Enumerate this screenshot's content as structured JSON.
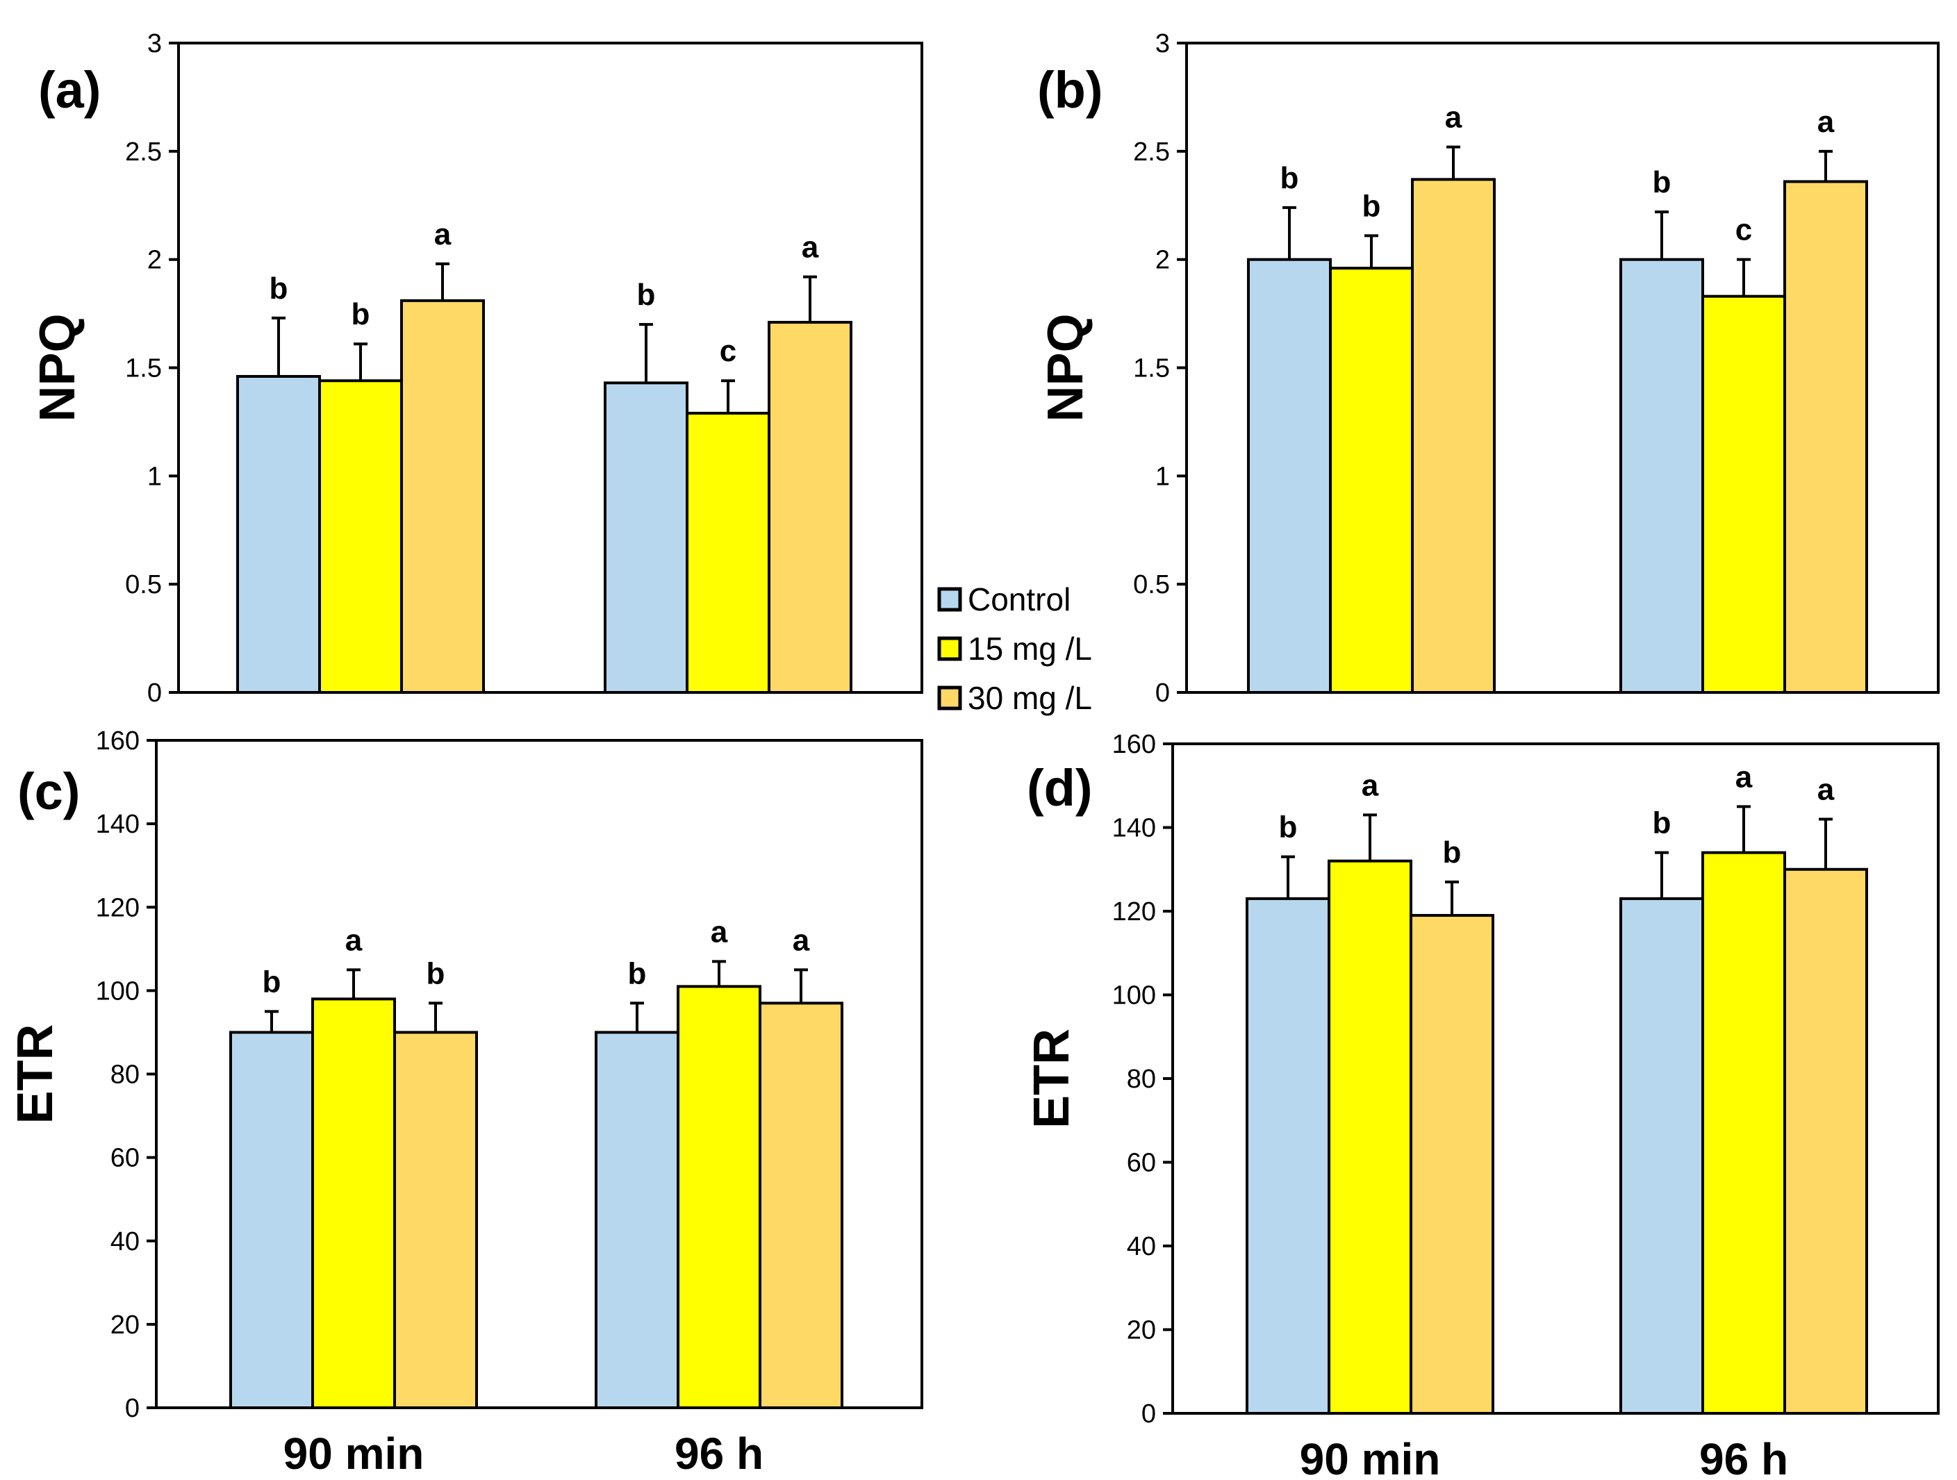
{
  "legend": [
    {
      "name": "Control",
      "color": "#b7d7ef"
    },
    {
      "name": "15 mg /L",
      "color": "#ffff00"
    },
    {
      "name": "30 mg /L",
      "color": "#ffd966"
    }
  ],
  "chart_data": [
    {
      "type": "bar",
      "panel": "(a)",
      "ylabel": "NPQ",
      "xlabel": "",
      "ylim": [
        0,
        3
      ],
      "yticks": [
        "0",
        "0.5",
        "1",
        "1.5",
        "2",
        "2.5",
        "3"
      ],
      "categories": [
        "90 min",
        "96 h"
      ],
      "show_xticklabels": false,
      "series": [
        {
          "name": "Control",
          "values": [
            1.46,
            1.43
          ],
          "errors": [
            0.27,
            0.27
          ],
          "sig": [
            "b",
            "b"
          ]
        },
        {
          "name": "15 mg /L",
          "values": [
            1.44,
            1.29
          ],
          "errors": [
            0.17,
            0.15
          ],
          "sig": [
            "b",
            "c"
          ]
        },
        {
          "name": "30 mg /L",
          "values": [
            1.81,
            1.71
          ],
          "errors": [
            0.17,
            0.21
          ],
          "sig": [
            "a",
            "a"
          ]
        }
      ]
    },
    {
      "type": "bar",
      "panel": "(b)",
      "ylabel": "NPQ",
      "xlabel": "",
      "ylim": [
        0,
        3
      ],
      "yticks": [
        "0",
        "0.5",
        "1",
        "1.5",
        "2",
        "2.5",
        "3"
      ],
      "categories": [
        "90 min",
        "96 h"
      ],
      "show_xticklabels": false,
      "series": [
        {
          "name": "Control",
          "values": [
            2.0,
            2.0
          ],
          "errors": [
            0.24,
            0.22
          ],
          "sig": [
            "b",
            "b"
          ]
        },
        {
          "name": "15 mg /L",
          "values": [
            1.96,
            1.83
          ],
          "errors": [
            0.15,
            0.17
          ],
          "sig": [
            "b",
            "c"
          ]
        },
        {
          "name": "30 mg /L",
          "values": [
            2.37,
            2.36
          ],
          "errors": [
            0.15,
            0.14
          ],
          "sig": [
            "a",
            "a"
          ]
        }
      ]
    },
    {
      "type": "bar",
      "panel": "(c)",
      "ylabel": "ETR",
      "xlabel": "",
      "ylim": [
        0,
        160
      ],
      "yticks": [
        "0",
        "20",
        "40",
        "60",
        "80",
        "100",
        "120",
        "140",
        "160"
      ],
      "categories": [
        "90 min",
        "96 h"
      ],
      "show_xticklabels": true,
      "series": [
        {
          "name": "Control",
          "values": [
            90,
            90
          ],
          "errors": [
            5,
            7
          ],
          "sig": [
            "b",
            "b"
          ]
        },
        {
          "name": "15 mg /L",
          "values": [
            98,
            101
          ],
          "errors": [
            7,
            6
          ],
          "sig": [
            "a",
            "a"
          ]
        },
        {
          "name": "30 mg /L",
          "values": [
            90,
            97
          ],
          "errors": [
            7,
            8
          ],
          "sig": [
            "b",
            "a"
          ]
        }
      ]
    },
    {
      "type": "bar",
      "panel": "(d)",
      "ylabel": "ETR",
      "xlabel": "",
      "ylim": [
        0,
        160
      ],
      "yticks": [
        "0",
        "20",
        "40",
        "60",
        "80",
        "100",
        "120",
        "140",
        "160"
      ],
      "categories": [
        "90 min",
        "96 h"
      ],
      "show_xticklabels": true,
      "series": [
        {
          "name": "Control",
          "values": [
            123,
            123
          ],
          "errors": [
            10,
            11
          ],
          "sig": [
            "b",
            "b"
          ]
        },
        {
          "name": "15 mg /L",
          "values": [
            132,
            134
          ],
          "errors": [
            11,
            11
          ],
          "sig": [
            "a",
            "a"
          ]
        },
        {
          "name": "30 mg /L",
          "values": [
            119,
            130
          ],
          "errors": [
            8,
            12
          ],
          "sig": [
            "b",
            "a"
          ]
        }
      ]
    }
  ]
}
